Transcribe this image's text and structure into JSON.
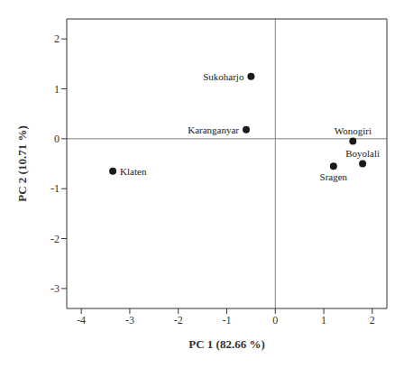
{
  "chart_data": {
    "type": "scatter",
    "xlabel": "PC 1 (82.66 %)",
    "ylabel": "PC 2 (10.71 %)",
    "x": [
      -0.5,
      -0.6,
      1.6,
      1.8,
      1.2,
      -3.35
    ],
    "y": [
      1.25,
      0.18,
      -0.05,
      -0.5,
      -0.55,
      -0.65
    ],
    "labels": [
      "Sukoharjo",
      "Karanganyar",
      "Wonogiri",
      "Boyolali",
      "Sragen",
      "Klaten"
    ],
    "color": "#1a1a1a",
    "xlim": [
      -4.3,
      2.3
    ],
    "ylim": [
      -3.4,
      2.4
    ],
    "xticks": [
      -4,
      -3,
      -2,
      -1,
      0,
      1,
      2
    ],
    "yticks": [
      -3,
      -2,
      -1,
      0,
      1,
      2
    ],
    "grid": false,
    "data_labels": true
  }
}
